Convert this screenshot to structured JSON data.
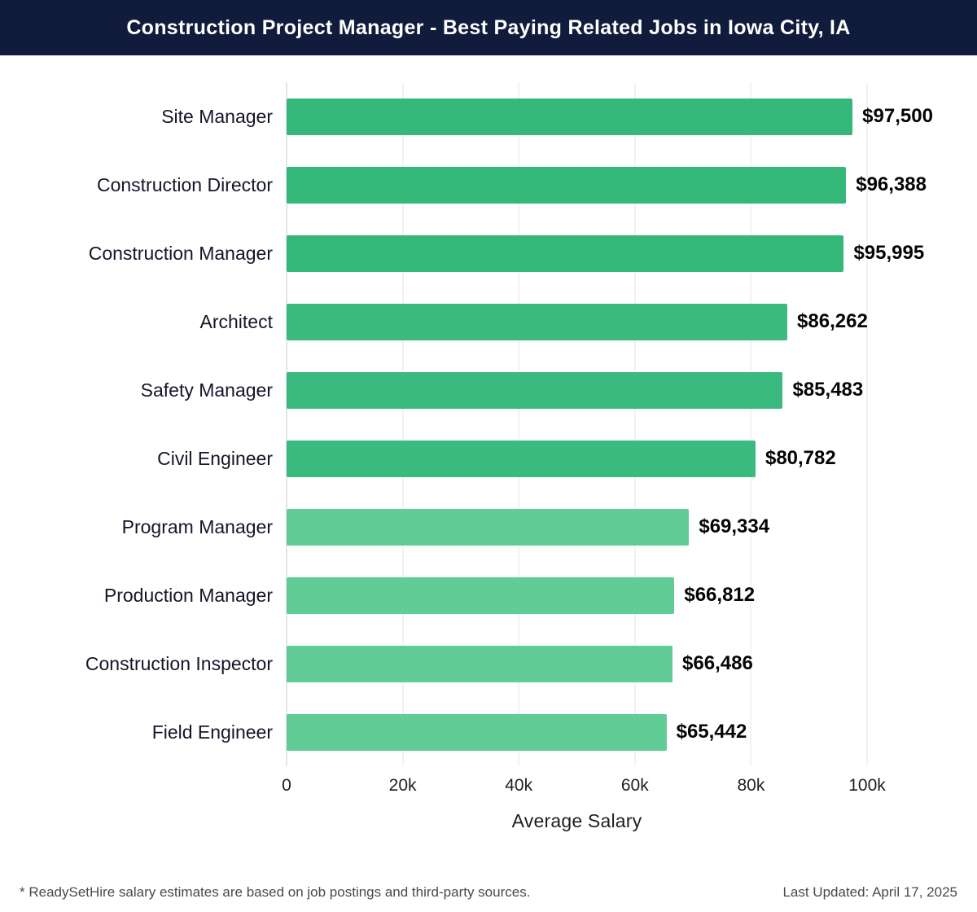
{
  "header": {
    "title": "Construction Project Manager - Best Paying Related Jobs in Iowa City, IA"
  },
  "chart_data": {
    "type": "bar",
    "orientation": "horizontal",
    "title": "Construction Project Manager - Best Paying Related Jobs in Iowa City, IA",
    "categories": [
      "Site Manager",
      "Construction Director",
      "Construction Manager",
      "Architect",
      "Safety Manager",
      "Civil Engineer",
      "Program Manager",
      "Production Manager",
      "Construction Inspector",
      "Field Engineer"
    ],
    "values": [
      97500,
      96388,
      95995,
      86262,
      85483,
      80782,
      69334,
      66812,
      66486,
      65442
    ],
    "value_labels": [
      "$97,500",
      "$96,388",
      "$95,995",
      "$86,262",
      "$85,483",
      "$80,782",
      "$69,334",
      "$66,812",
      "$66,486",
      "$65,442"
    ],
    "bar_colors": [
      "#33b879",
      "#33b879",
      "#33b879",
      "#3aba7e",
      "#3aba7e",
      "#3aba7e",
      "#62cc97",
      "#62cc97",
      "#62cc97",
      "#62cc97"
    ],
    "xlabel": "Average Salary",
    "ylabel": "",
    "xlim": [
      0,
      100000
    ],
    "xticks": [
      0,
      20000,
      40000,
      60000,
      80000,
      100000
    ],
    "xtick_labels": [
      "0",
      "20k",
      "40k",
      "60k",
      "80k",
      "100k"
    ],
    "grid": true,
    "legend": "none"
  },
  "footer": {
    "note": "* ReadySetHire salary estimates are based on job postings and third-party sources.",
    "updated": "Last Updated: April 17, 2025"
  }
}
